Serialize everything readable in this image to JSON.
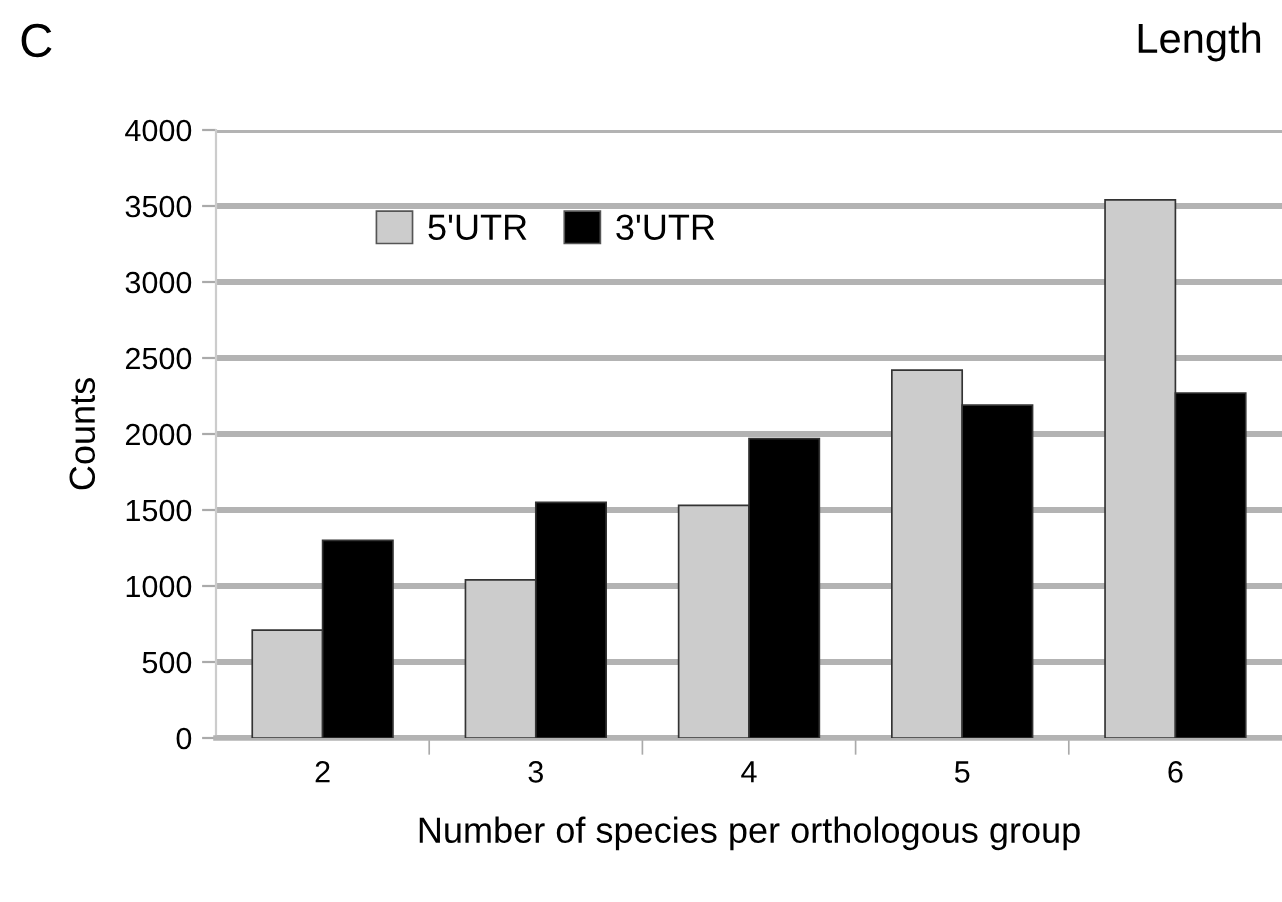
{
  "chart_data": {
    "type": "bar",
    "xlabel": "Number of species per orthologous group",
    "ylabel": "Counts",
    "annotations": [
      "C",
      "Length"
    ],
    "categories": [
      "2",
      "3",
      "4",
      "5",
      "6"
    ],
    "series": [
      {
        "name": "5'UTR",
        "color": "#cccccc",
        "values": [
          710,
          1040,
          1530,
          2420,
          3540
        ]
      },
      {
        "name": "3'UTR",
        "color": "#000000",
        "values": [
          1300,
          1550,
          1970,
          2190,
          2270
        ]
      }
    ],
    "ylim": [
      0,
      4000
    ],
    "yticks": [
      0,
      500,
      1000,
      1500,
      2000,
      2500,
      3000,
      3500,
      4000
    ],
    "grid": "y",
    "legend": "top left"
  }
}
